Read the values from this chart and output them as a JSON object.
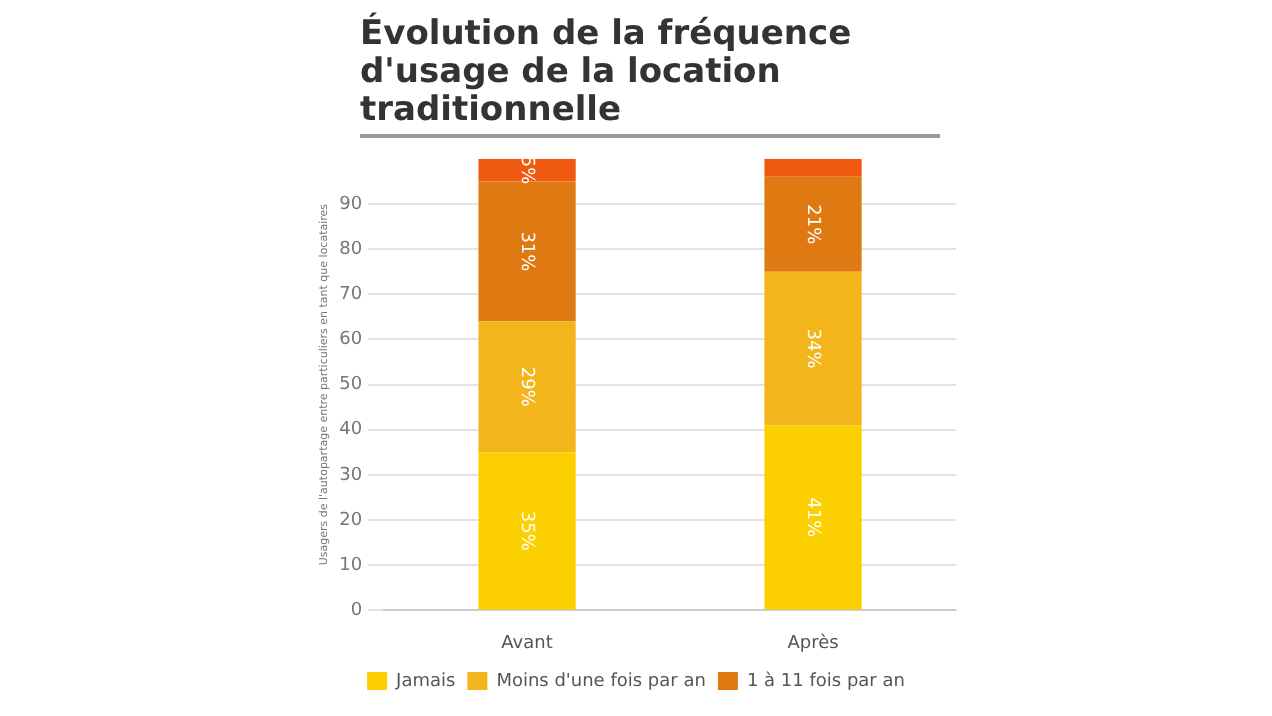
{
  "chart_data": {
    "type": "bar",
    "title": "Évolution de la fréquence d'usage de la location traditionnelle",
    "ylabel": "Usagers de l'autopartage entre particuliers en tant que locataires",
    "categories": [
      "Avant",
      "Après"
    ],
    "stacked": true,
    "series": [
      {
        "name": "Jamais",
        "color": "#fcd000",
        "values": [
          35,
          41
        ],
        "value_labels": [
          "35%",
          "41%"
        ]
      },
      {
        "name": "Moins d'une fois par an",
        "color": "#f2b51c",
        "values": [
          29,
          34
        ],
        "value_labels": [
          "29%",
          "34%"
        ]
      },
      {
        "name": "1 à 11 fois par an",
        "color": "#df7a12",
        "values": [
          31,
          21
        ],
        "value_labels": [
          "31%",
          "21%"
        ]
      },
      {
        "color": "#f05a10",
        "values": [
          5,
          4
        ],
        "value_labels": [
          "5%",
          null
        ]
      }
    ],
    "ylim": [
      0,
      100
    ],
    "yticks": [
      0,
      10,
      20,
      30,
      40,
      50,
      60,
      70,
      80,
      90
    ],
    "grid": "y",
    "legend": "bottom"
  }
}
